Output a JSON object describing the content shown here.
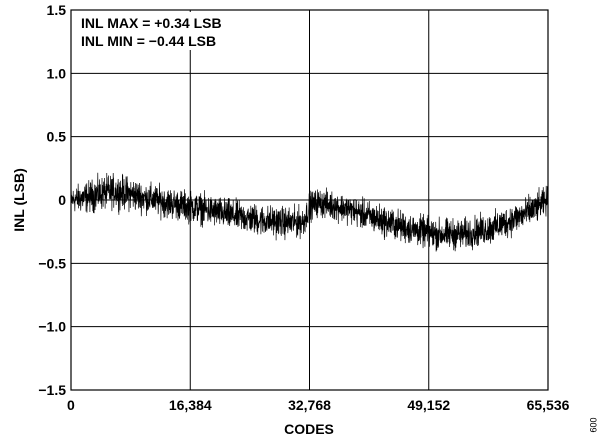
{
  "chart_data": {
    "type": "line",
    "title": "",
    "xlabel": "CODES",
    "ylabel": "INL (LSB)",
    "xlim": [
      0,
      65536
    ],
    "ylim": [
      -1.5,
      1.5
    ],
    "x_ticks": [
      0,
      16384,
      32768,
      49152,
      65536
    ],
    "x_tick_labels": [
      "0",
      "16,384",
      "32,768",
      "49,152",
      "65,536"
    ],
    "y_ticks": [
      1.5,
      1.0,
      0.5,
      0,
      -0.5,
      -1.0,
      -1.5
    ],
    "y_tick_labels": [
      "1.5",
      "1.0",
      "0.5",
      "0",
      "−0.5",
      "−1.0",
      "−1.5"
    ],
    "grid": true,
    "annotations": [
      "INL MAX = +0.34 LSB",
      "INL MIN = −0.44 LSB"
    ],
    "figure_id": "009",
    "series": [
      {
        "color": "#000000",
        "envelope": {
          "x": [
            0,
            2000,
            4000,
            6000,
            8000,
            10000,
            14000,
            18000,
            22000,
            26000,
            30000,
            32000,
            32768,
            34000,
            38000,
            42000,
            46000,
            50000,
            54000,
            58000,
            62000,
            64000,
            65536
          ],
          "mean": [
            0,
            0.02,
            0.05,
            0.07,
            0.05,
            0.02,
            -0.03,
            -0.07,
            -0.12,
            -0.16,
            -0.18,
            -0.17,
            -0.05,
            -0.02,
            -0.07,
            -0.15,
            -0.22,
            -0.27,
            -0.27,
            -0.22,
            -0.12,
            -0.06,
            0.0
          ],
          "half_width": [
            0.09,
            0.11,
            0.12,
            0.12,
            0.12,
            0.11,
            0.11,
            0.11,
            0.11,
            0.11,
            0.11,
            0.11,
            0.1,
            0.1,
            0.1,
            0.11,
            0.11,
            0.11,
            0.11,
            0.11,
            0.11,
            0.11,
            0.1
          ]
        }
      }
    ]
  }
}
